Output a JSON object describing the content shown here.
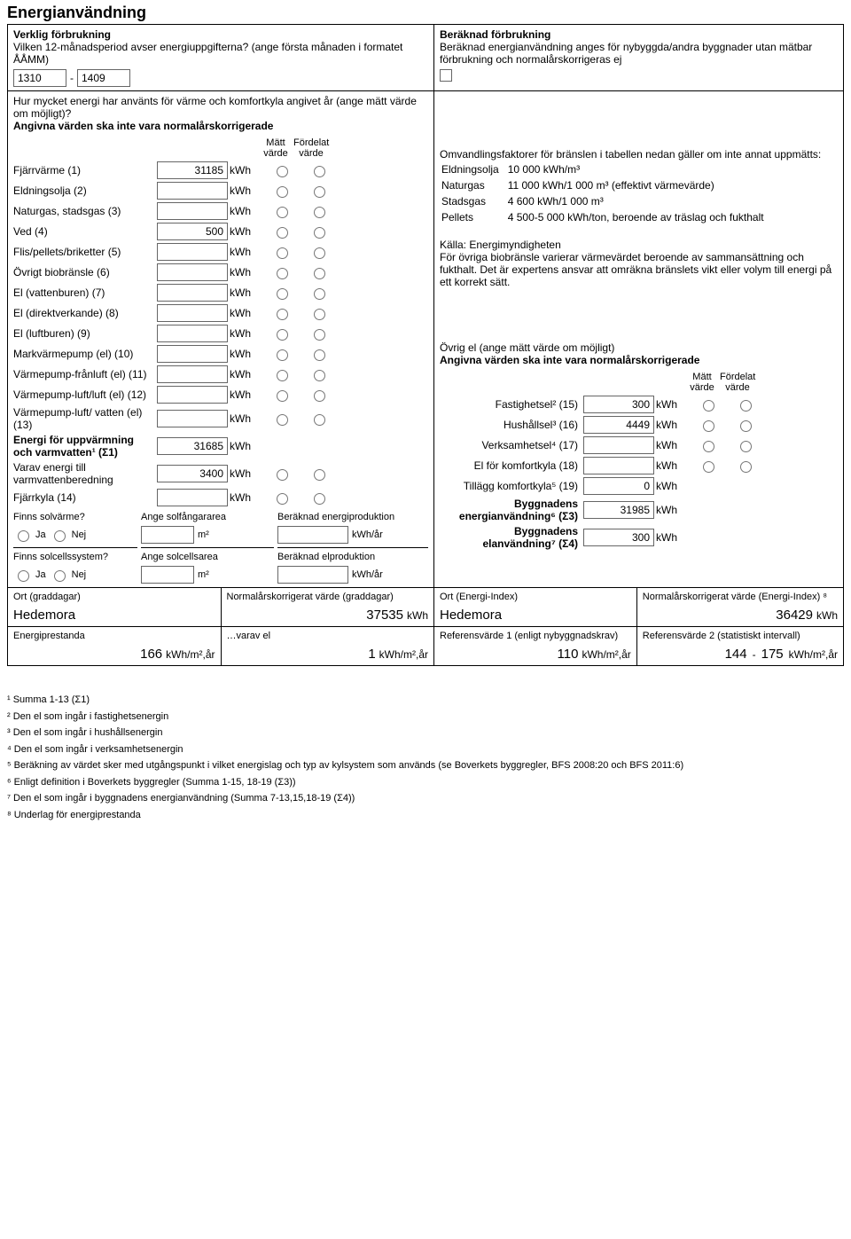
{
  "title": "Energianvändning",
  "left": {
    "header1": "Verklig förbrukning",
    "header2": "Vilken 12-månadsperiod avser energiuppgifterna? (ange första månaden i formatet ÅÅMM)",
    "period_from": "1310",
    "period_dash": "-",
    "period_to": "1409",
    "subheader1": "Hur mycket energi har använts för värme och komfortkyla angivet år (ange mätt värde om möjligt)?",
    "subheader2": "Angivna värden ska inte vara normalårskorrigerade",
    "col_matt": "Mätt värde",
    "col_fordelat": "Fördelat värde",
    "rows": [
      {
        "label": "Fjärrvärme (1)",
        "value": "31185",
        "unit": "kWh"
      },
      {
        "label": "Eldningsolja (2)",
        "value": "",
        "unit": "kWh"
      },
      {
        "label": "Naturgas, stadsgas (3)",
        "value": "",
        "unit": "kWh"
      },
      {
        "label": "Ved (4)",
        "value": "500",
        "unit": "kWh"
      },
      {
        "label": "Flis/pellets/briketter (5)",
        "value": "",
        "unit": "kWh"
      },
      {
        "label": "Övrigt biobränsle (6)",
        "value": "",
        "unit": "kWh"
      },
      {
        "label": "El (vattenburen) (7)",
        "value": "",
        "unit": "kWh"
      },
      {
        "label": "El (direktverkande) (8)",
        "value": "",
        "unit": "kWh"
      },
      {
        "label": "El (luftburen) (9)",
        "value": "",
        "unit": "kWh"
      },
      {
        "label": "Markvärmepump (el) (10)",
        "value": "",
        "unit": "kWh"
      },
      {
        "label": "Värmepump-frånluft (el) (11)",
        "value": "",
        "unit": "kWh"
      },
      {
        "label": "Värmepump-luft/luft (el) (12)",
        "value": "",
        "unit": "kWh"
      },
      {
        "label": "Värmepump-luft/ vatten (el) (13)",
        "value": "",
        "unit": "kWh"
      }
    ],
    "sum1_label": "Energi för uppvärmning och varmvatten¹ (Σ1)",
    "sum1_value": "31685",
    "sum1_unit": "kWh",
    "varm_label": "Varav energi till varmvattenberedning",
    "varm_value": "3400",
    "varm_unit": "kWh",
    "fjarrkyla_label": "Fjärrkyla (14)",
    "fjarrkyla_value": "",
    "fjarrkyla_unit": "kWh",
    "solvarme_q": "Finns solvärme?",
    "solarea_label": "Ange solfångararea",
    "solprod_label": "Beräknad energiproduktion",
    "solcell_q": "Finns solcellssystem?",
    "cellarea_label": "Ange solcellsarea",
    "cellprod_label": "Beräknad elproduktion",
    "ja": "Ja",
    "nej": "Nej",
    "m2": "m²",
    "kwhar": "kWh/år"
  },
  "right": {
    "header1": "Beräknad förbrukning",
    "header2": "Beräknad energianvändning anges för nybyggda/andra byggnader utan mätbar förbrukning och normalårskorrigeras ej",
    "checkbox_glyph": "☐",
    "factors_intro": "Omvandlingsfaktorer för bränslen i tabellen nedan gäller om inte annat uppmätts:",
    "factors": [
      {
        "name": "Eldningsolja",
        "val": "10 000 kWh/m³"
      },
      {
        "name": "Naturgas",
        "val": "11 000 kWh/1 000 m³ (effektivt värmevärde)"
      },
      {
        "name": "Stadsgas",
        "val": "4 600 kWh/1 000 m³"
      },
      {
        "name": "Pellets",
        "val": "4 500-5 000 kWh/ton, beroende av träslag och fukthalt"
      }
    ],
    "source": "Källa: Energimyndigheten",
    "note": "För övriga biobränsle varierar värmevärdet beroende av sammansättning och fukthalt. Det är expertens ansvar att omräkna bränslets vikt eller volym till energi på ett korrekt sätt.",
    "ovrig_header": "Övrig el (ange mätt värde om möjligt)",
    "ovrig_sub": "Angivna värden ska inte vara normalårskorrigerade",
    "col_matt": "Mätt värde",
    "col_fordelat": "Fördelat värde",
    "rows": [
      {
        "label": "Fastighetsel² (15)",
        "value": "300",
        "unit": "kWh",
        "radio": true
      },
      {
        "label": "Hushållsel³ (16)",
        "value": "4449",
        "unit": "kWh",
        "radio": true
      },
      {
        "label": "Verksamhetsel⁴ (17)",
        "value": "",
        "unit": "kWh",
        "radio": true
      },
      {
        "label": "El för komfortkyla (18)",
        "value": "",
        "unit": "kWh",
        "radio": true
      },
      {
        "label": "Tillägg komfortkyla⁵ (19)",
        "value": "0",
        "unit": "kWh",
        "radio": false
      }
    ],
    "sum3_label": "Byggnadens energianvändning⁶ (Σ3)",
    "sum3_value": "31985",
    "sum3_unit": "kWh",
    "sum4_label": "Byggnadens elanvändning⁷ (Σ4)",
    "sum4_value": "300",
    "sum4_unit": "kWh"
  },
  "bottom": {
    "ort_graddagar_label": "Ort (graddagar)",
    "ort_graddagar_value": "Hedemora",
    "norm_graddagar_label": "Normalårskorrigerat värde (graddagar)",
    "norm_graddagar_value": "37535",
    "ort_ei_label": "Ort (Energi-Index)",
    "ort_ei_value": "Hedemora",
    "norm_ei_label": "Normalårskorrigerat värde (Energi-Index) ⁸",
    "norm_ei_value": "36429",
    "kwh": "kWh",
    "ep_label": "Energiprestanda",
    "ep_value": "166",
    "varav_label": "…varav el",
    "varav_value": "1",
    "ref1_label": "Referensvärde 1 (enligt nybyggnadskrav)",
    "ref1_value": "110",
    "ref2_label": "Referensvärde 2 (statistiskt intervall)",
    "ref2_from": "144",
    "ref2_to": "175",
    "unit": "kWh/m²,år",
    "dash": "-"
  },
  "footnotes": [
    "¹ Summa 1-13 (Σ1)",
    "² Den el som ingår i fastighetsenergin",
    "³ Den el som ingår i hushållsenergin",
    "⁴ Den el som ingår i verksamhetsenergin",
    "⁵ Beräkning av värdet sker med utgångspunkt i vilket energislag och typ av kylsystem som används (se Boverkets byggregler, BFS 2008:20 och BFS 2011:6)",
    "⁶ Enligt definition i Boverkets byggregler (Summa 1-15, 18-19 (Σ3))",
    "⁷ Den el som ingår i byggnadens energianvändning (Summa 7-13,15,18-19 (Σ4))",
    "⁸ Underlag för energiprestanda"
  ]
}
